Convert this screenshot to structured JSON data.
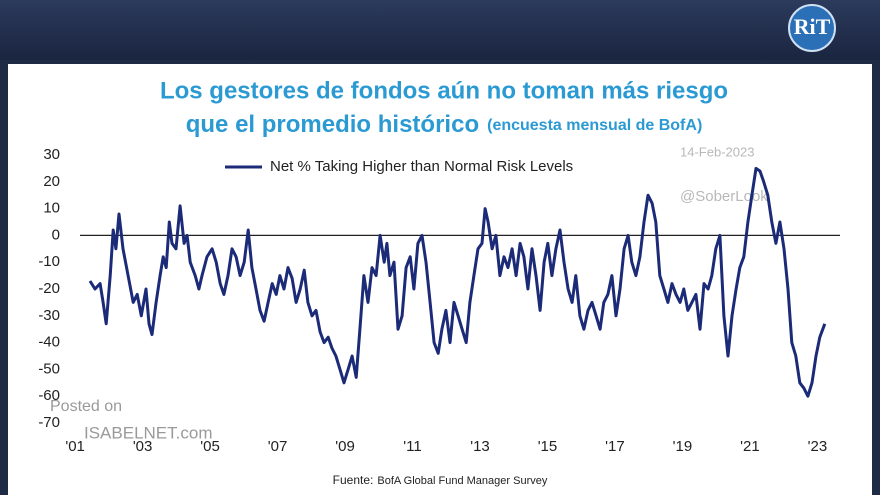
{
  "header": {
    "logo": "RiT"
  },
  "chart_data": {
    "type": "line",
    "title": "Los gestores de fondos aún no toman más riesgo",
    "subtitle": "que el promedio histórico",
    "subtitle_note": "(encuesta mensual de BofA)",
    "annotations": [
      "14-Feb-2023",
      "@SoberLook",
      "Posted on",
      "ISABELNET.com"
    ],
    "source_label": "Fuente:",
    "source": "BofA Global Fund Manager Survey",
    "reference_line": 0,
    "xlim": [
      2000.7,
      2023.67
    ],
    "ylim": [
      -70,
      30
    ],
    "yticks": [
      30,
      20,
      10,
      0,
      -10,
      -20,
      -30,
      -40,
      -50,
      -60,
      -70
    ],
    "xticks": [
      {
        "value": 2001,
        "label": "'01"
      },
      {
        "value": 2003,
        "label": "'03"
      },
      {
        "value": 2005,
        "label": "'05"
      },
      {
        "value": 2007,
        "label": "'07"
      },
      {
        "value": 2009,
        "label": "'09"
      },
      {
        "value": 2011,
        "label": "'11"
      },
      {
        "value": 2013,
        "label": "'13"
      },
      {
        "value": 2015,
        "label": "'15"
      },
      {
        "value": 2017,
        "label": "'17"
      },
      {
        "value": 2019,
        "label": "'19"
      },
      {
        "value": 2021,
        "label": "'21"
      },
      {
        "value": 2023,
        "label": "'23"
      }
    ],
    "x": [
      2001.44,
      2001.59,
      2001.74,
      2001.83,
      2001.92,
      2002.04,
      2002.13,
      2002.21,
      2002.3,
      2002.42,
      2002.57,
      2002.72,
      2002.84,
      2002.96,
      2003.1,
      2003.19,
      2003.28,
      2003.4,
      2003.52,
      2003.61,
      2003.7,
      2003.79,
      2003.87,
      2003.99,
      2004.11,
      2004.23,
      2004.32,
      2004.41,
      2004.56,
      2004.67,
      2004.76,
      2004.91,
      2005.06,
      2005.18,
      2005.3,
      2005.41,
      2005.53,
      2005.65,
      2005.77,
      2005.89,
      2006.01,
      2006.13,
      2006.24,
      2006.36,
      2006.48,
      2006.6,
      2006.72,
      2006.84,
      2006.96,
      2007.07,
      2007.19,
      2007.31,
      2007.43,
      2007.55,
      2007.67,
      2007.79,
      2007.9,
      2008.02,
      2008.14,
      2008.26,
      2008.38,
      2008.5,
      2008.61,
      2008.73,
      2008.85,
      2008.97,
      2009.09,
      2009.21,
      2009.33,
      2009.44,
      2009.56,
      2009.68,
      2009.8,
      2009.92,
      2010.04,
      2010.16,
      2010.24,
      2010.33,
      2010.45,
      2010.57,
      2010.69,
      2010.81,
      2010.93,
      2011.04,
      2011.16,
      2011.28,
      2011.4,
      2011.52,
      2011.64,
      2011.76,
      2011.87,
      2011.99,
      2012.11,
      2012.23,
      2012.35,
      2012.47,
      2012.59,
      2012.7,
      2012.82,
      2012.94,
      2013.06,
      2013.15,
      2013.24,
      2013.36,
      2013.47,
      2013.59,
      2013.71,
      2013.83,
      2013.95,
      2014.07,
      2014.19,
      2014.3,
      2014.42,
      2014.54,
      2014.66,
      2014.78,
      2014.9,
      2015.01,
      2015.13,
      2015.25,
      2015.37,
      2015.49,
      2015.61,
      2015.73,
      2015.84,
      2015.96,
      2016.08,
      2016.2,
      2016.32,
      2016.44,
      2016.56,
      2016.67,
      2016.79,
      2016.91,
      2017.03,
      2017.15,
      2017.27,
      2017.39,
      2017.5,
      2017.62,
      2017.74,
      2017.86,
      2017.98,
      2018.1,
      2018.21,
      2018.33,
      2018.45,
      2018.57,
      2018.69,
      2018.81,
      2018.93,
      2019.04,
      2019.16,
      2019.28,
      2019.4,
      2019.52,
      2019.64,
      2019.76,
      2019.87,
      2019.99,
      2020.11,
      2020.23,
      2020.35,
      2020.47,
      2020.59,
      2020.7,
      2020.82,
      2020.94,
      2021.06,
      2021.18,
      2021.3,
      2021.41,
      2021.53,
      2021.65,
      2021.77,
      2021.89,
      2022.01,
      2022.13,
      2022.24,
      2022.36,
      2022.48,
      2022.6,
      2022.72,
      2022.84,
      2022.96,
      2023.07,
      2023.22
    ],
    "series": [
      {
        "name": "Net % Taking Higher than Normal Risk Levels",
        "color": "#1c2b78",
        "values": [
          -17,
          -20,
          -18,
          -25,
          -33,
          -15,
          2,
          -5,
          8,
          -5,
          -15,
          -25,
          -22,
          -30,
          -20,
          -33,
          -37,
          -25,
          -15,
          -8,
          -12,
          5,
          -3,
          -5,
          11,
          -3,
          0,
          -10,
          -15,
          -20,
          -15,
          -8,
          -5,
          -10,
          -18,
          -22,
          -15,
          -5,
          -8,
          -15,
          -10,
          2,
          -12,
          -20,
          -28,
          -32,
          -25,
          -18,
          -22,
          -15,
          -20,
          -12,
          -16,
          -25,
          -20,
          -13,
          -25,
          -30,
          -28,
          -36,
          -40,
          -38,
          -42,
          -45,
          -50,
          -55,
          -50,
          -45,
          -53,
          -35,
          -15,
          -25,
          -12,
          -15,
          0,
          -10,
          -3,
          -15,
          -10,
          -35,
          -30,
          -12,
          -8,
          -20,
          -3,
          0,
          -10,
          -25,
          -40,
          -44,
          -35,
          -28,
          -40,
          -25,
          -30,
          -35,
          -40,
          -25,
          -15,
          -5,
          -3,
          10,
          5,
          -5,
          0,
          -15,
          -8,
          -12,
          -5,
          -15,
          -3,
          -8,
          -20,
          -5,
          -15,
          -28,
          -10,
          -3,
          -15,
          -5,
          2,
          -10,
          -20,
          -25,
          -15,
          -30,
          -35,
          -28,
          -25,
          -30,
          -35,
          -25,
          -22,
          -15,
          -30,
          -20,
          -5,
          0,
          -10,
          -15,
          -8,
          5,
          15,
          12,
          5,
          -15,
          -20,
          -25,
          -18,
          -22,
          -25,
          -20,
          -28,
          -25,
          -22,
          -35,
          -18,
          -20,
          -15,
          -5,
          0,
          -30,
          -45,
          -30,
          -20,
          -12,
          -8,
          5,
          15,
          25,
          24,
          20,
          15,
          5,
          -3,
          5,
          -5,
          -20,
          -40,
          -45,
          -55,
          -57,
          -60,
          -55,
          -45,
          -38,
          -33
        ]
      }
    ]
  }
}
